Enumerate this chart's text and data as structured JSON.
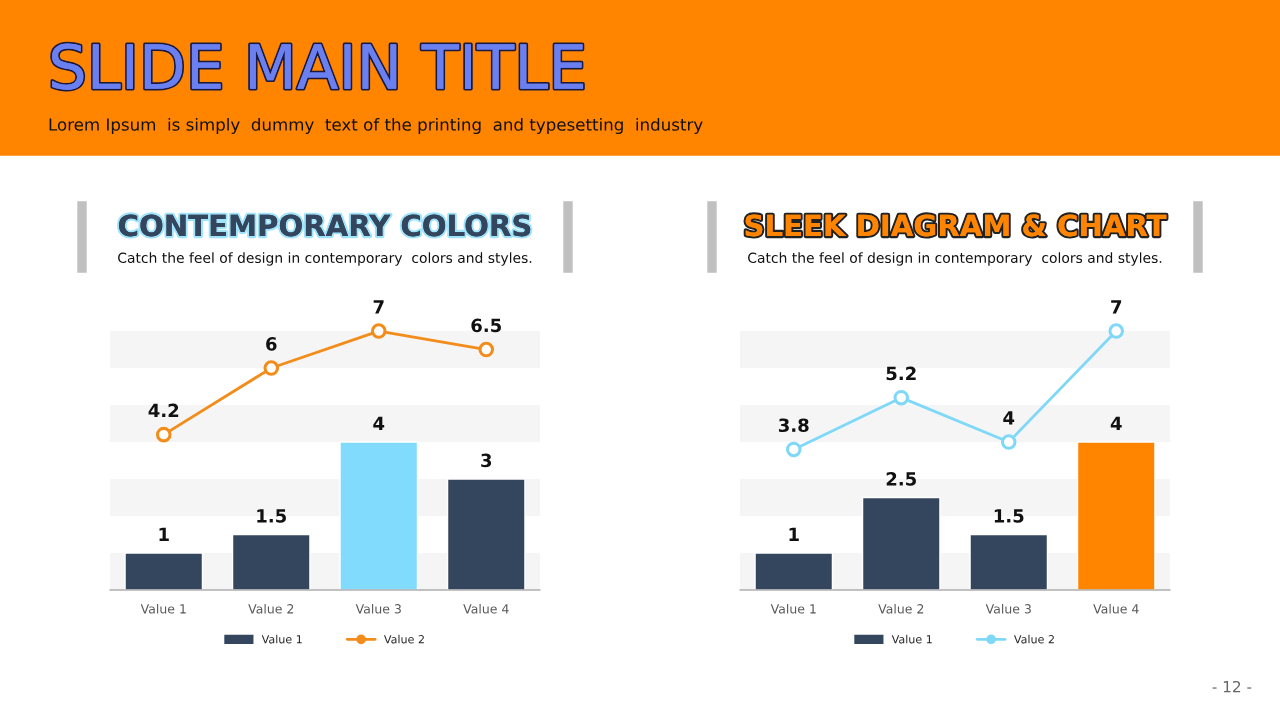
{
  "chart_data": [
    {
      "type": "bar",
      "title": "CONTEMPORARY COLORS",
      "subtitle": "Catch the feel of design in contemporary  colors and styles.",
      "annotations": [
        "SLIDE MAIN TITLE",
        "Lorem Ipsum  is simply  dummy  text of the printing  and typesetting  industry",
        "- 12 -"
      ],
      "categories": [
        "Value 1",
        "Value 2",
        "Value 3",
        "Value 4"
      ],
      "series": [
        {
          "name": "Value 1",
          "color": "#34465e",
          "colors": [
            "#34465e",
            "#34465e",
            "#80dbfd",
            "#34465e"
          ],
          "values": [
            1,
            1.5,
            4,
            3
          ]
        },
        {
          "name": "Value 2",
          "type": "line",
          "color": "#f28c1a",
          "marker": "circle",
          "values": [
            4.2,
            6,
            7,
            6.5
          ]
        }
      ],
      "tick_labels": "x",
      "data_labels": true,
      "legend": "bottom",
      "grid": false,
      "bands": [
        {
          "axis": "y",
          "from": 0,
          "to": 1,
          "color": "#f5f5f5"
        },
        {
          "axis": "y",
          "from": 2,
          "to": 3,
          "color": "#f5f5f5"
        },
        {
          "axis": "y",
          "from": 4,
          "to": 5,
          "color": "#f5f5f5"
        },
        {
          "axis": "y",
          "from": 6,
          "to": 7,
          "color": "#f5f5f5"
        }
      ]
    },
    {
      "type": "bar",
      "title": "SLEEK DIAGRAM & CHART",
      "subtitle": "Catch the feel of design in contemporary  colors and styles.",
      "categories": [
        "Value 1",
        "Value 2",
        "Value 3",
        "Value 4"
      ],
      "series": [
        {
          "name": "Value 1",
          "color": "#34465e",
          "colors": [
            "#34465e",
            "#34465e",
            "#34465e",
            "#ff8400"
          ],
          "values": [
            1,
            2.5,
            1.5,
            4
          ]
        },
        {
          "name": "Value 2",
          "type": "line",
          "color": "#80d8f8",
          "marker": "circle",
          "values": [
            3.8,
            5.2,
            4,
            7
          ]
        }
      ],
      "tick_labels": "x",
      "data_labels": true,
      "legend": "bottom",
      "grid": false,
      "bands": [
        {
          "axis": "y",
          "from": 0,
          "to": 1,
          "color": "#f5f5f5"
        },
        {
          "axis": "y",
          "from": 2,
          "to": 3,
          "color": "#f5f5f5"
        },
        {
          "axis": "y",
          "from": 4,
          "to": 5,
          "color": "#f5f5f5"
        },
        {
          "axis": "y",
          "from": 6,
          "to": 7,
          "color": "#f5f5f5"
        }
      ]
    }
  ]
}
